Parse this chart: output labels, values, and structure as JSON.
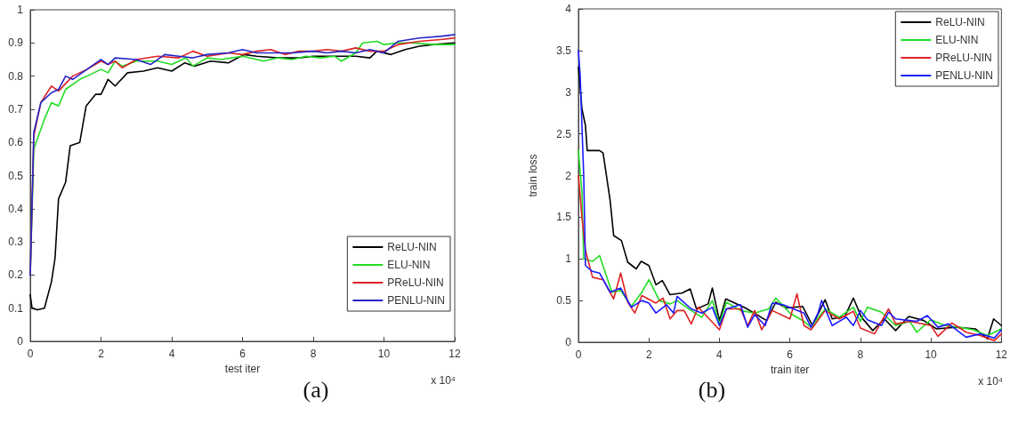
{
  "chart_data": [
    {
      "type": "line",
      "title": "(a)",
      "xlabel": "test iter",
      "annotations": [
        "x 10⁴"
      ],
      "xlim": [
        0,
        12
      ],
      "xticks": [
        0,
        2,
        4,
        6,
        8,
        10,
        12
      ],
      "ylim": [
        0,
        1
      ],
      "yticks": [
        0,
        0.1,
        0.2,
        0.3,
        0.4,
        0.5,
        0.6,
        0.7,
        0.8,
        0.9,
        1
      ],
      "grid": false,
      "legend": "bottom right",
      "marker": "none",
      "line_style": "solid",
      "series": [
        {
          "name": "ReLU-NIN",
          "color": "#000000",
          "x": [
            0,
            0.05,
            0.2,
            0.4,
            0.6,
            0.7,
            0.8,
            1.0,
            1.13,
            1.4,
            1.58,
            1.85,
            2.0,
            2.2,
            2.4,
            2.75,
            3.2,
            3.6,
            4.0,
            4.37,
            4.64,
            5.1,
            5.6,
            6.05,
            6.4,
            7.0,
            7.6,
            8.0,
            8.6,
            9.2,
            9.6,
            9.8,
            10.2,
            10.6,
            11.0,
            11.4,
            12
          ],
          "values": [
            0.14,
            0.1,
            0.095,
            0.1,
            0.18,
            0.25,
            0.43,
            0.48,
            0.59,
            0.6,
            0.71,
            0.745,
            0.745,
            0.79,
            0.77,
            0.81,
            0.815,
            0.825,
            0.815,
            0.84,
            0.83,
            0.845,
            0.84,
            0.865,
            0.86,
            0.855,
            0.855,
            0.86,
            0.86,
            0.86,
            0.855,
            0.875,
            0.865,
            0.88,
            0.89,
            0.895,
            0.9
          ]
        },
        {
          "name": "ELU-NIN",
          "color": "#22dd22",
          "x": [
            0,
            0.1,
            0.4,
            0.6,
            0.8,
            1.0,
            1.4,
            1.6,
            2.0,
            2.2,
            2.4,
            2.6,
            3.0,
            3.6,
            4.0,
            4.4,
            4.6,
            5.0,
            5.4,
            6.0,
            6.6,
            7.0,
            7.4,
            7.8,
            8.2,
            8.6,
            8.8,
            9.2,
            9.4,
            9.8,
            10.0,
            10.4,
            10.8,
            11.4,
            12
          ],
          "values": [
            0.2,
            0.58,
            0.67,
            0.72,
            0.71,
            0.76,
            0.79,
            0.8,
            0.82,
            0.81,
            0.845,
            0.83,
            0.845,
            0.845,
            0.835,
            0.855,
            0.83,
            0.855,
            0.85,
            0.86,
            0.845,
            0.855,
            0.85,
            0.86,
            0.855,
            0.86,
            0.845,
            0.87,
            0.9,
            0.905,
            0.895,
            0.9,
            0.9,
            0.895,
            0.895
          ]
        },
        {
          "name": "PReLU-NIN",
          "color": "#dd2222",
          "x": [
            0,
            0.1,
            0.3,
            0.6,
            0.8,
            1.2,
            1.6,
            2.0,
            2.2,
            2.4,
            2.6,
            3.0,
            3.6,
            4.2,
            4.6,
            5.0,
            5.6,
            6.0,
            6.4,
            6.8,
            7.2,
            7.6,
            8.0,
            8.4,
            8.8,
            9.2,
            9.6,
            10.0,
            10.4,
            11.0,
            11.6,
            12
          ],
          "values": [
            0.2,
            0.62,
            0.72,
            0.77,
            0.755,
            0.8,
            0.82,
            0.845,
            0.835,
            0.845,
            0.825,
            0.85,
            0.86,
            0.855,
            0.875,
            0.86,
            0.87,
            0.865,
            0.875,
            0.88,
            0.865,
            0.875,
            0.875,
            0.88,
            0.875,
            0.885,
            0.875,
            0.875,
            0.895,
            0.905,
            0.91,
            0.915
          ]
        },
        {
          "name": "PENLU-NIN",
          "color": "#2525c8",
          "x": [
            0,
            0.1,
            0.3,
            0.6,
            0.8,
            1.0,
            1.2,
            1.6,
            2.0,
            2.2,
            2.4,
            3.0,
            3.4,
            3.8,
            4.2,
            4.6,
            5.0,
            5.6,
            6.0,
            6.4,
            7.0,
            7.4,
            8.0,
            8.4,
            8.8,
            9.2,
            9.6,
            10.0,
            10.4,
            11.0,
            11.6,
            12
          ],
          "values": [
            0.2,
            0.63,
            0.72,
            0.75,
            0.76,
            0.8,
            0.79,
            0.82,
            0.85,
            0.835,
            0.855,
            0.85,
            0.835,
            0.865,
            0.86,
            0.855,
            0.865,
            0.87,
            0.88,
            0.87,
            0.87,
            0.87,
            0.875,
            0.87,
            0.875,
            0.87,
            0.88,
            0.87,
            0.905,
            0.915,
            0.92,
            0.925
          ]
        }
      ]
    },
    {
      "type": "line",
      "title": "(b)",
      "xlabel": "train iter",
      "ylabel": "train loss",
      "annotations": [
        "x 10⁴"
      ],
      "xlim": [
        0,
        12
      ],
      "xticks": [
        0,
        2,
        4,
        6,
        8,
        10,
        12
      ],
      "ylim": [
        0,
        4
      ],
      "yticks": [
        0,
        0.5,
        1,
        1.5,
        2,
        2.5,
        3,
        3.5,
        4
      ],
      "grid": false,
      "legend": "top right",
      "marker": "none",
      "line_style": "solid",
      "series": [
        {
          "name": "ReLU-NIN",
          "color": "#000000",
          "x": [
            0,
            0.1,
            0.2,
            0.25,
            0.6,
            0.7,
            0.9,
            1.0,
            1.22,
            1.4,
            1.64,
            1.78,
            2.0,
            2.2,
            2.38,
            2.6,
            2.94,
            3.17,
            3.35,
            3.68,
            3.8,
            4.0,
            4.18,
            4.74,
            5.34,
            5.6,
            5.9,
            6.36,
            6.64,
            7.0,
            7.2,
            7.56,
            7.8,
            8.03,
            8.35,
            8.68,
            9.0,
            9.37,
            9.8,
            10.16,
            10.7,
            11.27,
            11.6,
            11.78,
            12
          ],
          "values": [
            3.3,
            2.8,
            2.6,
            2.3,
            2.3,
            2.27,
            1.7,
            1.28,
            1.22,
            0.96,
            0.88,
            0.97,
            0.92,
            0.69,
            0.74,
            0.57,
            0.59,
            0.64,
            0.4,
            0.46,
            0.65,
            0.26,
            0.52,
            0.41,
            0.26,
            0.48,
            0.41,
            0.43,
            0.2,
            0.51,
            0.28,
            0.31,
            0.53,
            0.3,
            0.14,
            0.28,
            0.14,
            0.31,
            0.26,
            0.16,
            0.18,
            0.16,
            0.04,
            0.28,
            0.2
          ]
        },
        {
          "name": "ELU-NIN",
          "color": "#22dd22",
          "x": [
            0,
            0.1,
            0.15,
            0.4,
            0.6,
            0.95,
            1.2,
            1.5,
            1.8,
            2.0,
            2.3,
            2.6,
            2.8,
            3.2,
            3.5,
            3.8,
            4.0,
            4.2,
            4.6,
            5.0,
            5.4,
            5.6,
            6.0,
            6.4,
            6.6,
            7.0,
            7.4,
            7.8,
            8.0,
            8.2,
            8.6,
            9.0,
            9.4,
            9.6,
            10.0,
            10.4,
            10.8,
            11.2,
            11.6,
            12
          ],
          "values": [
            2.3,
            1.8,
            1.0,
            0.97,
            1.04,
            0.6,
            0.62,
            0.43,
            0.6,
            0.75,
            0.5,
            0.46,
            0.5,
            0.38,
            0.3,
            0.5,
            0.22,
            0.48,
            0.38,
            0.35,
            0.4,
            0.53,
            0.35,
            0.25,
            0.18,
            0.4,
            0.3,
            0.42,
            0.25,
            0.42,
            0.36,
            0.2,
            0.25,
            0.12,
            0.27,
            0.2,
            0.18,
            0.15,
            0.08,
            0.16
          ]
        },
        {
          "name": "PReLU-NIN",
          "color": "#dd2222",
          "x": [
            0,
            0.1,
            0.2,
            0.4,
            0.7,
            1.0,
            1.2,
            1.4,
            1.6,
            1.8,
            2.2,
            2.4,
            2.6,
            2.8,
            3.0,
            3.2,
            3.4,
            3.6,
            4.0,
            4.2,
            4.6,
            4.8,
            5.0,
            5.2,
            5.5,
            6.0,
            6.2,
            6.4,
            6.6,
            7.0,
            7.4,
            7.8,
            8.0,
            8.4,
            8.8,
            9.0,
            9.4,
            10.0,
            10.2,
            10.6,
            11.0,
            11.4,
            11.8,
            12
          ],
          "values": [
            2.0,
            1.5,
            1.1,
            0.78,
            0.75,
            0.52,
            0.83,
            0.48,
            0.35,
            0.56,
            0.47,
            0.53,
            0.28,
            0.38,
            0.38,
            0.22,
            0.42,
            0.33,
            0.15,
            0.4,
            0.4,
            0.2,
            0.38,
            0.15,
            0.38,
            0.28,
            0.58,
            0.2,
            0.15,
            0.38,
            0.28,
            0.37,
            0.17,
            0.1,
            0.4,
            0.22,
            0.25,
            0.2,
            0.07,
            0.23,
            0.12,
            0.08,
            0.02,
            0.1
          ]
        },
        {
          "name": "PENLU-NIN",
          "color": "#1a1aff",
          "x": [
            0,
            0.05,
            0.15,
            0.2,
            0.4,
            0.6,
            0.9,
            1.2,
            1.5,
            1.8,
            2.0,
            2.2,
            2.5,
            2.7,
            2.8,
            3.2,
            3.5,
            3.8,
            4.0,
            4.2,
            4.6,
            4.8,
            5.0,
            5.3,
            5.5,
            5.8,
            6.4,
            6.6,
            6.8,
            6.9,
            7.2,
            7.6,
            7.8,
            8.0,
            8.2,
            8.6,
            8.8,
            9.0,
            9.6,
            9.9,
            10.2,
            10.5,
            11.0,
            11.4,
            11.8,
            12
          ],
          "values": [
            3.5,
            3.2,
            2.0,
            0.92,
            0.85,
            0.83,
            0.6,
            0.65,
            0.42,
            0.5,
            0.47,
            0.35,
            0.45,
            0.35,
            0.55,
            0.4,
            0.35,
            0.42,
            0.2,
            0.4,
            0.45,
            0.18,
            0.33,
            0.2,
            0.47,
            0.45,
            0.35,
            0.18,
            0.35,
            0.5,
            0.2,
            0.3,
            0.2,
            0.38,
            0.27,
            0.2,
            0.36,
            0.28,
            0.25,
            0.32,
            0.18,
            0.22,
            0.06,
            0.1,
            0.05,
            0.15
          ]
        }
      ]
    }
  ]
}
